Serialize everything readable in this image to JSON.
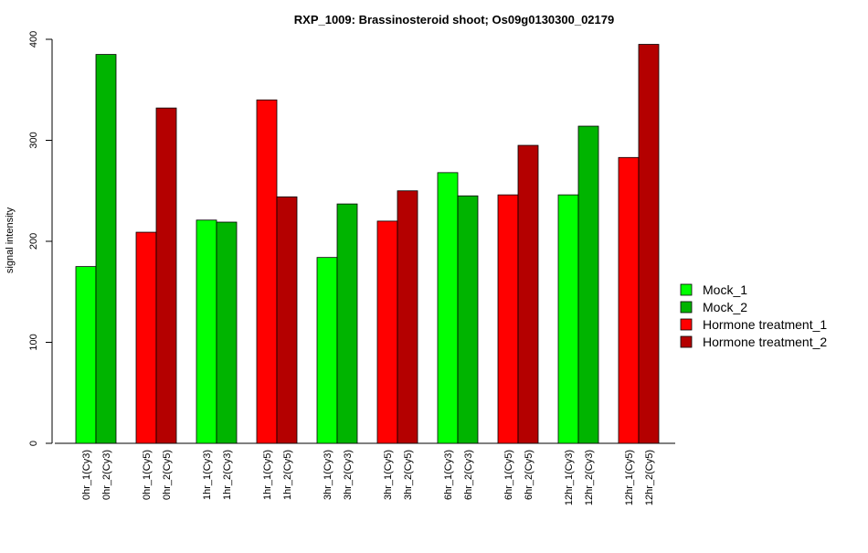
{
  "chart_data": {
    "type": "bar",
    "title": "RXP_1009: Brassinosteroid shoot; Os09g0130300_02179",
    "xlabel": "",
    "ylabel": "signal intensity",
    "ylim": [
      0,
      400
    ],
    "yticks": [
      0,
      100,
      200,
      300,
      400
    ],
    "grid": false,
    "legend_position": "right",
    "series_colors": {
      "Mock_1": "#00ff00",
      "Mock_2": "#00b400",
      "Hormone treatment_1": "#ff0000",
      "Hormone treatment_2": "#b40000"
    },
    "bars": [
      {
        "label": "0hr_1(Cy3)",
        "series": "Mock_1",
        "value": 175
      },
      {
        "label": "0hr_2(Cy3)",
        "series": "Mock_2",
        "value": 385
      },
      {
        "label": "0hr_1(Cy5)",
        "series": "Hormone treatment_1",
        "value": 209
      },
      {
        "label": "0hr_2(Cy5)",
        "series": "Hormone treatment_2",
        "value": 332
      },
      {
        "label": "1hr_1(Cy3)",
        "series": "Mock_1",
        "value": 221
      },
      {
        "label": "1hr_2(Cy3)",
        "series": "Mock_2",
        "value": 219
      },
      {
        "label": "1hr_1(Cy5)",
        "series": "Hormone treatment_1",
        "value": 340
      },
      {
        "label": "1hr_2(Cy5)",
        "series": "Hormone treatment_2",
        "value": 244
      },
      {
        "label": "3hr_1(Cy3)",
        "series": "Mock_1",
        "value": 184
      },
      {
        "label": "3hr_2(Cy3)",
        "series": "Mock_2",
        "value": 237
      },
      {
        "label": "3hr_1(Cy5)",
        "series": "Hormone treatment_1",
        "value": 220
      },
      {
        "label": "3hr_2(Cy5)",
        "series": "Hormone treatment_2",
        "value": 250
      },
      {
        "label": "6hr_1(Cy3)",
        "series": "Mock_1",
        "value": 268
      },
      {
        "label": "6hr_2(Cy3)",
        "series": "Mock_2",
        "value": 245
      },
      {
        "label": "6hr_1(Cy5)",
        "series": "Hormone treatment_1",
        "value": 246
      },
      {
        "label": "6hr_2(Cy5)",
        "series": "Hormone treatment_2",
        "value": 295
      },
      {
        "label": "12hr_1(Cy3)",
        "series": "Mock_1",
        "value": 246
      },
      {
        "label": "12hr_2(Cy3)",
        "series": "Mock_2",
        "value": 314
      },
      {
        "label": "12hr_1(Cy5)",
        "series": "Hormone treatment_1",
        "value": 283
      },
      {
        "label": "12hr_2(Cy5)",
        "series": "Hormone treatment_2",
        "value": 395
      }
    ],
    "legend": [
      {
        "name": "Mock_1",
        "color": "#00ff00"
      },
      {
        "name": "Mock_2",
        "color": "#00b400"
      },
      {
        "name": "Hormone treatment_1",
        "color": "#ff0000"
      },
      {
        "name": "Hormone treatment_2",
        "color": "#b40000"
      }
    ]
  }
}
